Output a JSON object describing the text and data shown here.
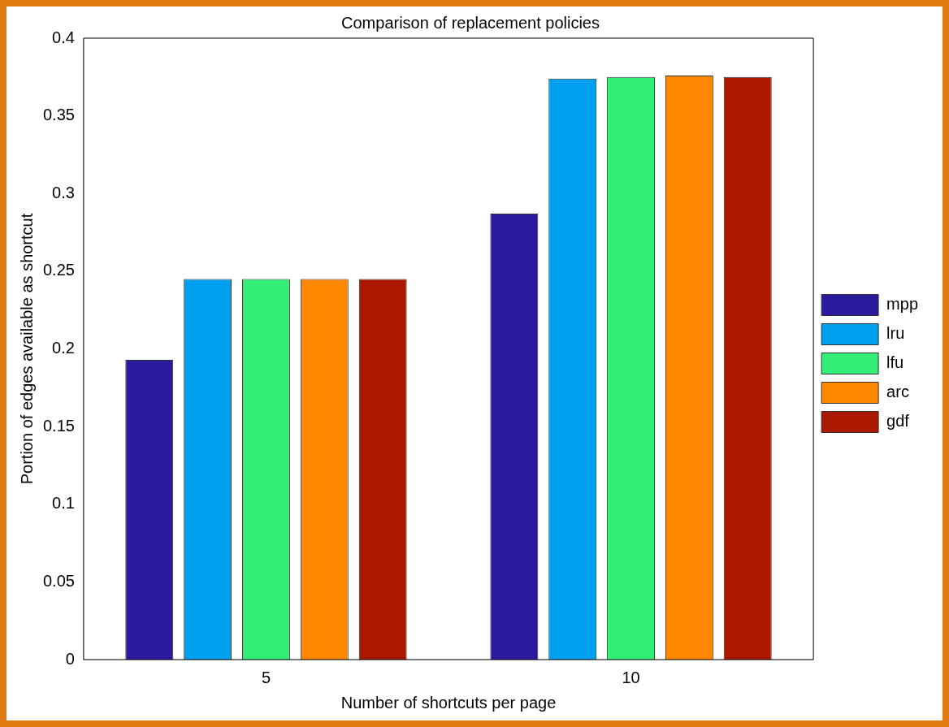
{
  "chart_data": {
    "type": "bar",
    "title": "Comparison of replacement policies",
    "xlabel": "Number of shortcuts per page",
    "ylabel": "Portion of edges available as shortcut",
    "categories": [
      "5",
      "10"
    ],
    "series": [
      {
        "name": "mpp",
        "color": "#2a1a9e",
        "values": [
          0.193,
          0.287
        ]
      },
      {
        "name": "lru",
        "color": "#00a0f0",
        "values": [
          0.245,
          0.374
        ]
      },
      {
        "name": "lfu",
        "color": "#33ee77",
        "values": [
          0.245,
          0.375
        ]
      },
      {
        "name": "arc",
        "color": "#ff8800",
        "values": [
          0.245,
          0.376
        ]
      },
      {
        "name": "gdf",
        "color": "#aa1800",
        "values": [
          0.245,
          0.375
        ]
      }
    ],
    "ylim": [
      0,
      0.4
    ],
    "yticks": [
      0,
      0.05,
      0.1,
      0.15,
      0.2,
      0.25,
      0.3,
      0.35,
      0.4
    ],
    "grid": false,
    "legend": "right"
  }
}
